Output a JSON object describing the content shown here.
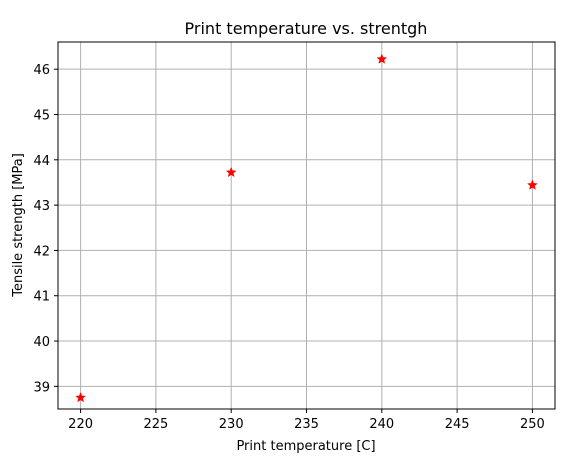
{
  "chart_data": {
    "type": "scatter",
    "title": "Print temperature vs. strentgh",
    "xlabel": "Print temperature [C]",
    "ylabel": "Tensile strength [MPa]",
    "xlim": [
      218.5,
      251.5
    ],
    "ylim": [
      38.5,
      46.6
    ],
    "xticks": [
      220,
      225,
      230,
      235,
      240,
      245,
      250
    ],
    "yticks": [
      39,
      40,
      41,
      42,
      43,
      44,
      45,
      46
    ],
    "grid": true,
    "marker": "star",
    "marker_color": "#ff0000",
    "points": [
      {
        "x": 220,
        "y": 38.75
      },
      {
        "x": 230,
        "y": 43.72
      },
      {
        "x": 240,
        "y": 46.22
      },
      {
        "x": 250,
        "y": 43.44
      }
    ]
  }
}
